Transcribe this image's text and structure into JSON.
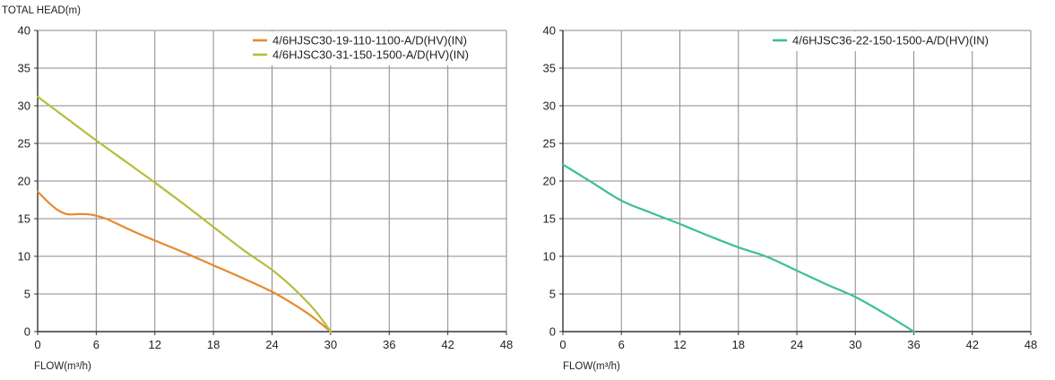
{
  "chart_data": [
    {
      "type": "line",
      "title": "",
      "ylabel": "TOTAL HEAD(m)",
      "xlabel": "FLOW(m³/h)",
      "xlim": [
        0,
        48
      ],
      "ylim": [
        0,
        40
      ],
      "xticks": [
        "0",
        "6",
        "12",
        "18",
        "24",
        "30",
        "36",
        "42",
        "48"
      ],
      "yticks": [
        "0",
        "5",
        "10",
        "15",
        "20",
        "25",
        "30",
        "35",
        "40"
      ],
      "grid": true,
      "legend_position": "top-right",
      "series": [
        {
          "name": "4/6HJSC30-19-110-1100-A/D(HV)(IN)",
          "color": "#e8892c",
          "x": [
            0,
            1,
            2,
            3,
            4,
            5,
            6,
            7,
            8,
            10,
            12,
            15,
            18,
            21,
            24,
            26,
            28,
            30
          ],
          "y": [
            18.6,
            17.3,
            16.2,
            15.6,
            15.6,
            15.6,
            15.4,
            15.0,
            14.4,
            13.2,
            12.1,
            10.5,
            8.8,
            7.1,
            5.3,
            3.8,
            2.1,
            0
          ]
        },
        {
          "name": "4/6HJSC30-31-150-1500-A/D(HV)(IN)",
          "color": "#b5bd3a",
          "x": [
            0,
            3,
            6,
            9,
            12,
            15,
            18,
            21,
            24,
            26,
            28,
            29,
            30
          ],
          "y": [
            31.2,
            28.3,
            25.4,
            22.6,
            19.8,
            16.9,
            13.9,
            10.9,
            8.2,
            6.0,
            3.4,
            1.8,
            0
          ]
        }
      ]
    },
    {
      "type": "line",
      "title": "",
      "ylabel": "",
      "xlabel": "FLOW(m³/h)",
      "xlim": [
        0,
        48
      ],
      "ylim": [
        0,
        40
      ],
      "xticks": [
        "0",
        "6",
        "12",
        "18",
        "24",
        "30",
        "36",
        "42",
        "48"
      ],
      "yticks": [
        "0",
        "5",
        "10",
        "15",
        "20",
        "25",
        "30",
        "35",
        "40"
      ],
      "grid": true,
      "legend_position": "top-right",
      "series": [
        {
          "name": "4/6HJSC36-22-150-1500-A/D(HV)(IN)",
          "color": "#3cbf95",
          "x": [
            0,
            3,
            6,
            9,
            12,
            15,
            18,
            21,
            24,
            27,
            30,
            33,
            36
          ],
          "y": [
            22.2,
            19.8,
            17.4,
            15.8,
            14.3,
            12.7,
            11.2,
            9.9,
            8.1,
            6.3,
            4.6,
            2.4,
            0
          ]
        }
      ]
    }
  ]
}
